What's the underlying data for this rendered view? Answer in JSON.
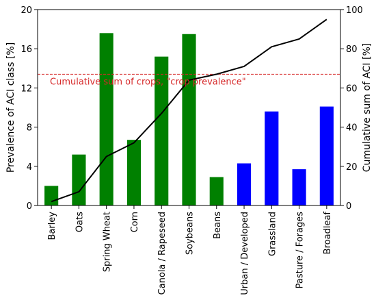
{
  "chart_data": {
    "type": "bar",
    "categories": [
      "Barley",
      "Oats",
      "Spring Wheat",
      "Corn",
      "Canola / Rapeseed",
      "Soybeans",
      "Beans",
      "Urban / Developed",
      "Grassland",
      "Pasture / Forages",
      "Broadleaf"
    ],
    "series": [
      {
        "type": "bar",
        "axis": "left",
        "values": [
          2.0,
          5.2,
          17.6,
          6.7,
          15.2,
          17.5,
          2.9,
          4.3,
          9.6,
          3.7,
          10.1
        ],
        "colors": [
          "#008000",
          "#008000",
          "#008000",
          "#008000",
          "#008000",
          "#008000",
          "#008000",
          "#0000ff",
          "#0000ff",
          "#0000ff",
          "#0000ff"
        ]
      },
      {
        "type": "line",
        "axis": "right",
        "values": [
          2,
          7,
          25,
          32,
          47,
          64,
          67,
          71,
          81,
          85,
          95
        ],
        "color": "#000000"
      }
    ],
    "y_left": {
      "label": "Prevalence of ACI class [%]",
      "lim": [
        0,
        20
      ],
      "ticks": [
        0,
        4,
        8,
        12,
        16,
        20
      ]
    },
    "y_right": {
      "label": "Cumulative sum of ACI [%]",
      "lim": [
        0,
        100
      ],
      "ticks": [
        0,
        20,
        40,
        60,
        80,
        100
      ]
    },
    "hline": {
      "axis": "right",
      "value": 67,
      "color": "#d62728",
      "style": "dashed",
      "label": "Cumulative sum of crops, \"crop prevalence\""
    },
    "grid": false,
    "legend": "none"
  }
}
